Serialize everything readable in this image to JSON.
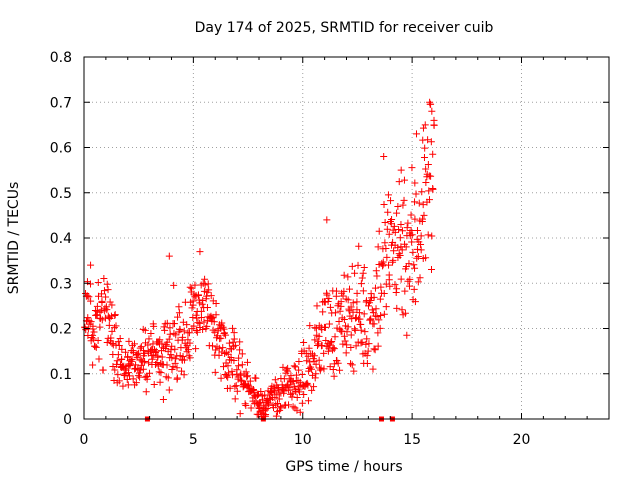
{
  "chart_data": {
    "type": "scatter",
    "title": "Day 174 of 2025, SRMTID for receiver cuib",
    "xlabel": "GPS time / hours",
    "ylabel": "SRMTID / TECUs",
    "xlim": [
      0,
      24
    ],
    "ylim": [
      0,
      0.8
    ],
    "xticks": [
      "0",
      "5",
      "10",
      "15",
      "20"
    ],
    "yticks": [
      "0",
      "0.1",
      "0.2",
      "0.3",
      "0.4",
      "0.5",
      "0.6",
      "0.7",
      "0.8"
    ],
    "grid": true,
    "marker": "+",
    "color": "#ff0000",
    "envelope": [
      {
        "x": 0.0,
        "y": 0.22,
        "s": 0.05
      },
      {
        "x": 0.5,
        "y": 0.2,
        "s": 0.05
      },
      {
        "x": 1.0,
        "y": 0.23,
        "s": 0.05
      },
      {
        "x": 1.5,
        "y": 0.15,
        "s": 0.04
      },
      {
        "x": 2.0,
        "y": 0.13,
        "s": 0.03
      },
      {
        "x": 2.5,
        "y": 0.11,
        "s": 0.03
      },
      {
        "x": 3.0,
        "y": 0.15,
        "s": 0.04
      },
      {
        "x": 3.5,
        "y": 0.14,
        "s": 0.04
      },
      {
        "x": 4.0,
        "y": 0.18,
        "s": 0.05
      },
      {
        "x": 4.5,
        "y": 0.17,
        "s": 0.05
      },
      {
        "x": 5.0,
        "y": 0.21,
        "s": 0.05
      },
      {
        "x": 5.5,
        "y": 0.27,
        "s": 0.05
      },
      {
        "x": 6.0,
        "y": 0.17,
        "s": 0.04
      },
      {
        "x": 6.5,
        "y": 0.14,
        "s": 0.04
      },
      {
        "x": 7.0,
        "y": 0.12,
        "s": 0.035
      },
      {
        "x": 7.5,
        "y": 0.07,
        "s": 0.025
      },
      {
        "x": 8.0,
        "y": 0.035,
        "s": 0.02
      },
      {
        "x": 8.5,
        "y": 0.04,
        "s": 0.02
      },
      {
        "x": 9.0,
        "y": 0.06,
        "s": 0.025
      },
      {
        "x": 9.5,
        "y": 0.07,
        "s": 0.03
      },
      {
        "x": 10.0,
        "y": 0.09,
        "s": 0.03
      },
      {
        "x": 10.5,
        "y": 0.13,
        "s": 0.04
      },
      {
        "x": 11.0,
        "y": 0.21,
        "s": 0.05
      },
      {
        "x": 11.5,
        "y": 0.19,
        "s": 0.05
      },
      {
        "x": 12.0,
        "y": 0.22,
        "s": 0.05
      },
      {
        "x": 12.5,
        "y": 0.25,
        "s": 0.06
      },
      {
        "x": 13.0,
        "y": 0.21,
        "s": 0.06
      },
      {
        "x": 13.5,
        "y": 0.3,
        "s": 0.08
      },
      {
        "x": 14.0,
        "y": 0.37,
        "s": 0.09
      },
      {
        "x": 14.5,
        "y": 0.4,
        "s": 0.09
      },
      {
        "x": 15.0,
        "y": 0.36,
        "s": 0.1
      },
      {
        "x": 15.5,
        "y": 0.48,
        "s": 0.1
      },
      {
        "x": 15.8,
        "y": 0.55,
        "s": 0.09
      },
      {
        "x": 16.0,
        "y": 0.5,
        "s": 0.1
      }
    ],
    "point_count": 900,
    "extreme_points": [
      {
        "x": 15.8,
        "y": 0.7
      },
      {
        "x": 15.9,
        "y": 0.68
      },
      {
        "x": 16.0,
        "y": 0.66
      },
      {
        "x": 15.6,
        "y": 0.65
      },
      {
        "x": 15.2,
        "y": 0.63
      },
      {
        "x": 13.7,
        "y": 0.58
      },
      {
        "x": 14.5,
        "y": 0.55
      },
      {
        "x": 5.3,
        "y": 0.37
      },
      {
        "x": 3.9,
        "y": 0.36
      },
      {
        "x": 0.3,
        "y": 0.34
      },
      {
        "x": 11.1,
        "y": 0.44
      },
      {
        "x": 8.3,
        "y": 0.01
      },
      {
        "x": 8.1,
        "y": 0.015
      }
    ],
    "baseline_markers": [
      2.9,
      8.2,
      13.6,
      14.1
    ]
  }
}
